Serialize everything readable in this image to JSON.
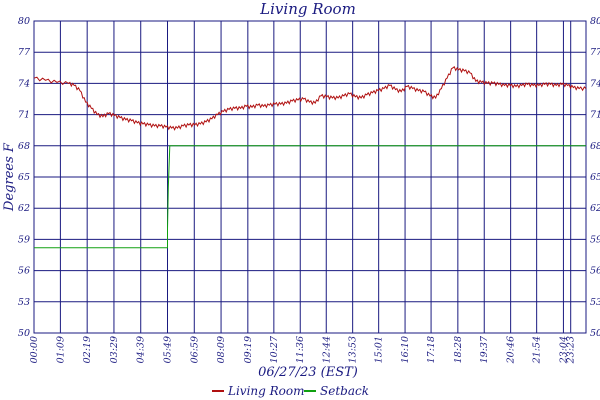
{
  "chart_data": {
    "type": "line",
    "title": "Living Room",
    "xlabel": "06/27/23 (EST)",
    "ylabel": "Degrees F",
    "ylim": [
      50,
      80
    ],
    "xlim": [
      0,
      1443
    ],
    "y_ticks": [
      "80",
      "77",
      "74",
      "71",
      "68",
      "65",
      "62",
      "59",
      "56",
      "53",
      "50"
    ],
    "x_ticks": [
      {
        "label": "00:00",
        "minute": 0
      },
      {
        "label": "01:09",
        "minute": 69
      },
      {
        "label": "02:19",
        "minute": 139
      },
      {
        "label": "03:29",
        "minute": 209
      },
      {
        "label": "04:39",
        "minute": 279
      },
      {
        "label": "05:49",
        "minute": 349
      },
      {
        "label": "06:59",
        "minute": 419
      },
      {
        "label": "08:09",
        "minute": 489
      },
      {
        "label": "09:19",
        "minute": 559
      },
      {
        "label": "10:27",
        "minute": 627
      },
      {
        "label": "11:36",
        "minute": 696
      },
      {
        "label": "12:44",
        "minute": 764
      },
      {
        "label": "13:53",
        "minute": 833
      },
      {
        "label": "15:01",
        "minute": 901
      },
      {
        "label": "16:10",
        "minute": 970
      },
      {
        "label": "17:18",
        "minute": 1038
      },
      {
        "label": "18:28",
        "minute": 1108
      },
      {
        "label": "19:37",
        "minute": 1177
      },
      {
        "label": "20:46",
        "minute": 1246
      },
      {
        "label": "21:54",
        "minute": 1314
      },
      {
        "label": "23:04",
        "minute": 1384
      },
      {
        "label": "23:23",
        "minute": 1403
      }
    ],
    "grid": true,
    "legend": "bottom",
    "series": [
      {
        "name": "Living Room",
        "color": "#b01010",
        "x": [
          0,
          30,
          60,
          90,
          105,
          120,
          135,
          150,
          165,
          180,
          195,
          210,
          225,
          240,
          255,
          270,
          285,
          300,
          315,
          330,
          345,
          360,
          375,
          390,
          405,
          420,
          435,
          450,
          465,
          480,
          495,
          510,
          525,
          540,
          555,
          570,
          585,
          600,
          615,
          630,
          645,
          660,
          675,
          690,
          705,
          720,
          735,
          750,
          765,
          780,
          795,
          810,
          825,
          840,
          855,
          870,
          885,
          900,
          915,
          930,
          945,
          960,
          975,
          990,
          1005,
          1020,
          1035,
          1050,
          1065,
          1080,
          1095,
          1110,
          1125,
          1140,
          1155,
          1170,
          1185,
          1200,
          1215,
          1230,
          1245,
          1260,
          1275,
          1290,
          1305,
          1320,
          1335,
          1350,
          1365,
          1380,
          1395,
          1410,
          1425,
          1443
        ],
        "y": [
          74.5,
          74.3,
          74.1,
          74.0,
          73.8,
          73.3,
          72.2,
          71.6,
          71.0,
          70.8,
          71.1,
          70.9,
          70.7,
          70.5,
          70.4,
          70.2,
          70.1,
          70.0,
          69.9,
          69.9,
          69.8,
          69.7,
          69.7,
          69.9,
          70.0,
          70.0,
          70.1,
          70.3,
          70.6,
          71.0,
          71.3,
          71.5,
          71.6,
          71.6,
          71.8,
          71.7,
          71.9,
          71.8,
          71.9,
          72.0,
          72.0,
          72.1,
          72.3,
          72.4,
          72.5,
          72.2,
          72.1,
          72.8,
          72.7,
          72.6,
          72.6,
          72.8,
          73.0,
          72.7,
          72.6,
          72.9,
          73.1,
          73.3,
          73.5,
          73.8,
          73.4,
          73.2,
          73.7,
          73.5,
          73.3,
          73.2,
          72.8,
          72.6,
          73.5,
          74.5,
          75.5,
          75.3,
          75.2,
          75.0,
          74.2,
          74.1,
          74.0,
          74.0,
          73.9,
          73.8,
          73.8,
          73.7,
          73.8,
          73.9,
          73.8,
          73.8,
          73.9,
          73.9,
          73.8,
          73.9,
          73.8,
          73.6,
          73.5,
          73.5
        ]
      },
      {
        "name": "Setback",
        "color": "#10a010",
        "x": [
          0,
          349,
          349,
          351,
          355,
          1443
        ],
        "y": [
          58.2,
          58.2,
          60.0,
          64.0,
          68.0,
          68.0
        ]
      }
    ]
  }
}
